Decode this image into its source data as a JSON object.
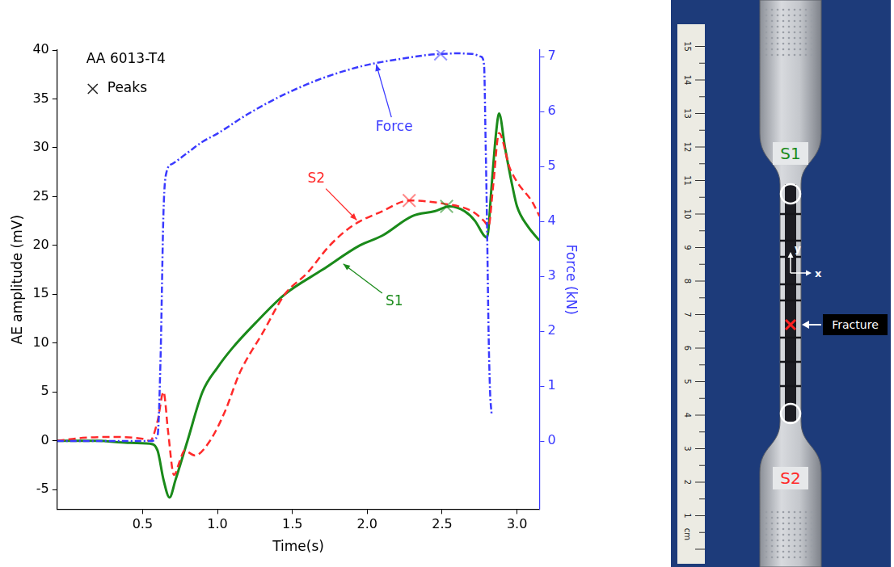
{
  "chart_data": {
    "type": "line",
    "title": "AA 6013-T4",
    "x_label": "Time(s)",
    "y_label": "AE amplitude (mV)",
    "y2_label": "Force (kN)",
    "xlim": [
      -0.07,
      3.15
    ],
    "xticks": [
      0.5,
      {
        "value": 1,
        "label": "1.0"
      },
      1.5,
      {
        "value": 2,
        "label": "2.0"
      },
      2.5,
      {
        "value": 3,
        "label": "3.0"
      }
    ],
    "ylim": [
      -7,
      40
    ],
    "yticks": [
      -5,
      0,
      5,
      10,
      15,
      20,
      25,
      30,
      35,
      40
    ],
    "y2lim": [
      -1.24,
      7.12
    ],
    "y2ticks": [
      0,
      1,
      2,
      3,
      4,
      5,
      6,
      7
    ],
    "grid": false,
    "peaks_label": "Peaks",
    "series": [
      {
        "name": "Force",
        "axis": "y2",
        "color": "#3a3aff",
        "line_style": "dashdot",
        "marker": "none",
        "x": [
          -0.07,
          0.2,
          0.4,
          0.55,
          0.6,
          0.62,
          0.64,
          0.66,
          0.7,
          0.8,
          0.9,
          1.0,
          1.2,
          1.4,
          1.6,
          1.8,
          2.0,
          2.2,
          2.4,
          2.5,
          2.6,
          2.7,
          2.76,
          2.78,
          2.79,
          2.8,
          2.81,
          2.82,
          2.83
        ],
        "values": [
          0,
          0,
          0,
          0,
          0.1,
          1.5,
          4.2,
          4.9,
          5.05,
          5.25,
          5.45,
          5.6,
          5.95,
          6.25,
          6.5,
          6.7,
          6.85,
          6.95,
          7.03,
          7.05,
          7.06,
          7.05,
          7.0,
          6.85,
          5.5,
          3.9,
          2.0,
          0.9,
          0.5
        ],
        "peak": {
          "x": 2.49,
          "y": 7.05
        }
      },
      {
        "name": "S2",
        "color": "#ff2a2a",
        "line_style": "dashed",
        "marker": "none",
        "x": [
          -0.07,
          0.1,
          0.3,
          0.5,
          0.55,
          0.6,
          0.64,
          0.67,
          0.71,
          0.75,
          0.78,
          0.85,
          0.95,
          1.05,
          1.15,
          1.3,
          1.45,
          1.6,
          1.75,
          1.9,
          2.1,
          2.28,
          2.5,
          2.7,
          2.78,
          2.81,
          2.84,
          2.88,
          2.95,
          3.0,
          3.1,
          3.15
        ],
        "values": [
          0,
          0.3,
          0.4,
          0.2,
          0,
          2.0,
          5.0,
          1.0,
          -3.5,
          -2.0,
          -1.0,
          -1.5,
          0,
          3.0,
          7.0,
          11.0,
          15.0,
          17.2,
          20.0,
          22.0,
          23.5,
          24.6,
          24.3,
          23.5,
          22.5,
          22.0,
          26.0,
          31.5,
          28.0,
          26.5,
          24.5,
          23.0
        ],
        "peak": {
          "x": 2.28,
          "y": 24.6
        }
      },
      {
        "name": "S1",
        "color": "#1a8a1a",
        "line_style": "solid",
        "marker": "none",
        "x": [
          -0.07,
          0.2,
          0.4,
          0.55,
          0.6,
          0.64,
          0.68,
          0.72,
          0.8,
          0.9,
          1.0,
          1.1,
          1.25,
          1.45,
          1.7,
          1.95,
          2.1,
          2.3,
          2.45,
          2.55,
          2.65,
          2.72,
          2.78,
          2.8,
          2.83,
          2.86,
          2.88,
          2.92,
          2.97,
          3.0,
          3.07,
          3.15
        ],
        "values": [
          0,
          0,
          -0.2,
          -0.3,
          -1.0,
          -4.0,
          -5.8,
          -4.0,
          0,
          5.0,
          7.5,
          9.5,
          12.0,
          15.0,
          17.5,
          20.0,
          21.0,
          23.0,
          23.5,
          24.0,
          23.5,
          22.5,
          21.0,
          20.8,
          26.0,
          31.5,
          33.5,
          30.0,
          26.0,
          24.0,
          22.0,
          20.5
        ],
        "peak": {
          "x": 2.53,
          "y": 24.0
        }
      }
    ]
  },
  "specimen": {
    "labels": {
      "top": "S1",
      "bottom": "S2",
      "fracture": "Fracture",
      "x_axis": "x",
      "y_axis": "y"
    },
    "ruler": {
      "unit": "cm",
      "marks": [
        1,
        2,
        3,
        4,
        5,
        6,
        7,
        8,
        9,
        10,
        11,
        12,
        13,
        14,
        15
      ]
    }
  }
}
